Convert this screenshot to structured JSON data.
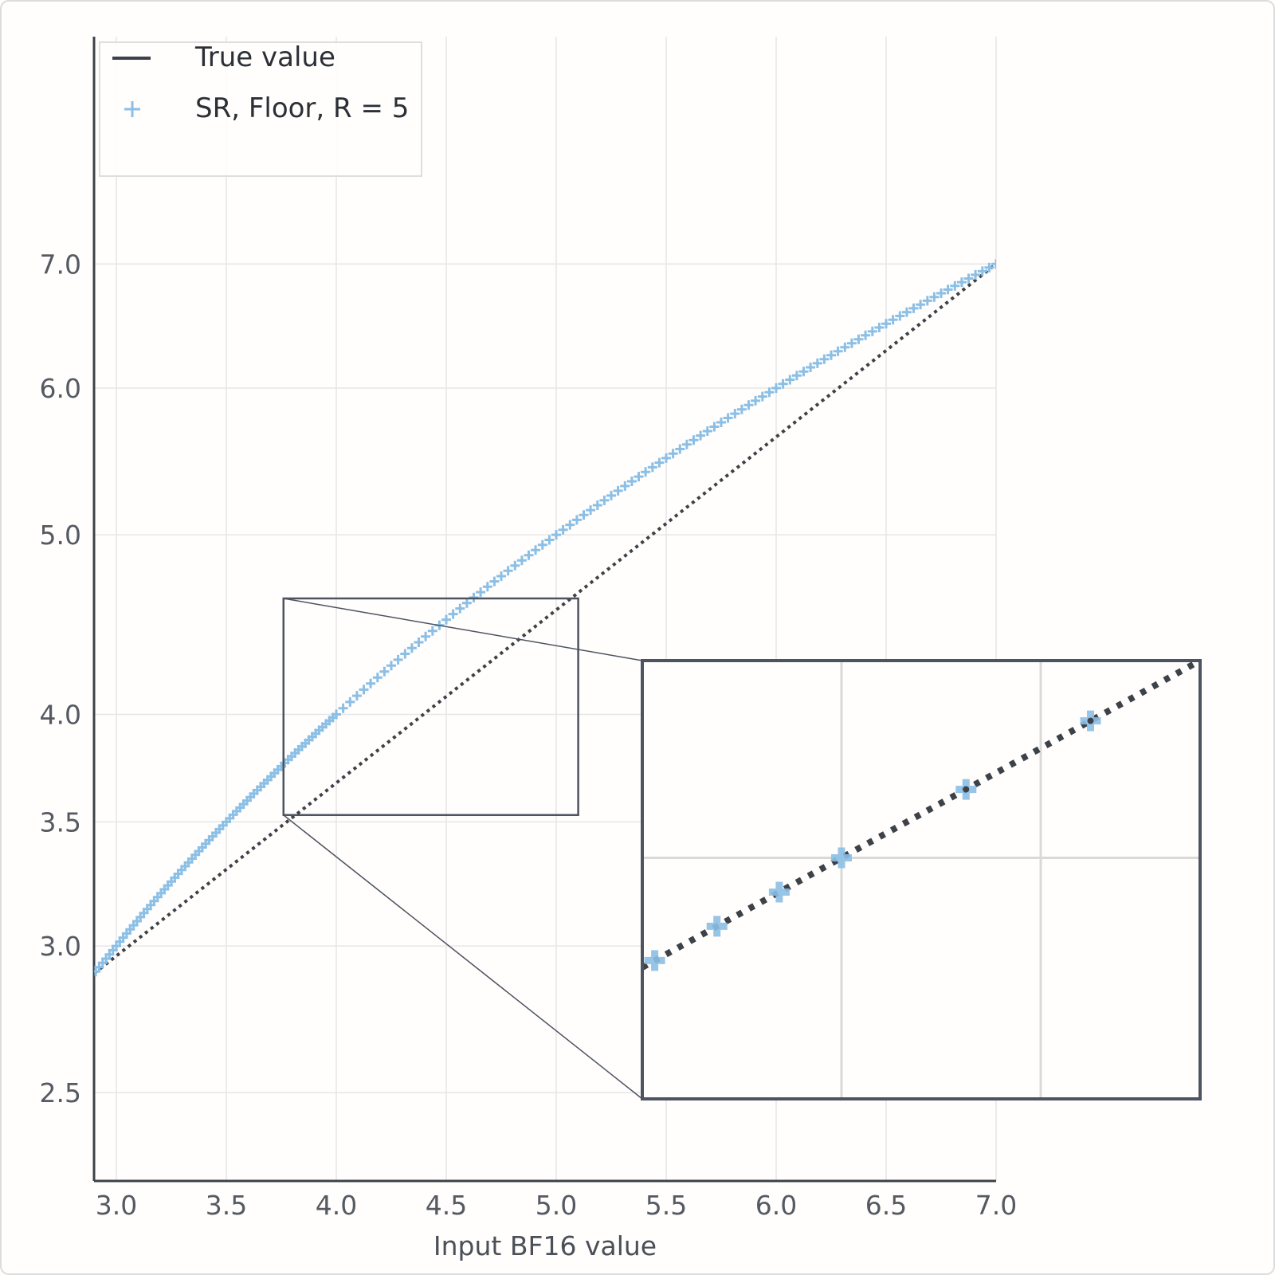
{
  "chart_data": {
    "type": "scatter",
    "title": "",
    "xlabel": "Input BF16 value",
    "ylabel": "",
    "xlim": [
      2.9,
      7.0
    ],
    "ylim": [
      2.4,
      7.3
    ],
    "grid": true,
    "y_axis_scale": "log",
    "x_ticks": [
      "3.0",
      "3.5",
      "4.0",
      "4.5",
      "5.0",
      "5.5",
      "6.0",
      "6.5",
      "7.0"
    ],
    "y_ticks": [
      "2.5",
      "3.0",
      "3.5",
      "4.0",
      "5.0",
      "6.0",
      "7.0"
    ],
    "legend": {
      "position": "top-left",
      "entries": [
        {
          "label": "True value",
          "marker": "line",
          "color": "#3d4148"
        },
        {
          "label": "SR, Floor, R = 5",
          "marker": "+",
          "color": "#8bbfe6"
        }
      ]
    },
    "series": [
      {
        "name": "True value",
        "kind": "line",
        "color": "#3d4148",
        "x": [
          2.9,
          7.0
        ],
        "y": [
          2.9,
          7.0
        ]
      },
      {
        "name": "SR, Floor, R = 5",
        "kind": "points",
        "color": "#8bbfe6",
        "marker": "+",
        "segments": [
          {
            "x_start": 2.90625,
            "x_end": 4.0,
            "x_step": 0.015625
          },
          {
            "x_start": 4.03125,
            "x_end": 7.0,
            "x_step": 0.03125
          }
        ],
        "y_equals_x": true
      }
    ],
    "inset": {
      "description": "Zoomed inset",
      "source_x_range": [
        3.76,
        5.1
      ],
      "source_y_range": [
        3.53,
        4.62
      ],
      "zoom_x_range": [
        3.95,
        4.09
      ],
      "zoom_y_range": [
        3.89,
        4.09
      ],
      "zoom_x_gridlines": [
        4.0,
        4.05
      ],
      "zoom_y_gridlines": [
        4.0
      ]
    }
  }
}
